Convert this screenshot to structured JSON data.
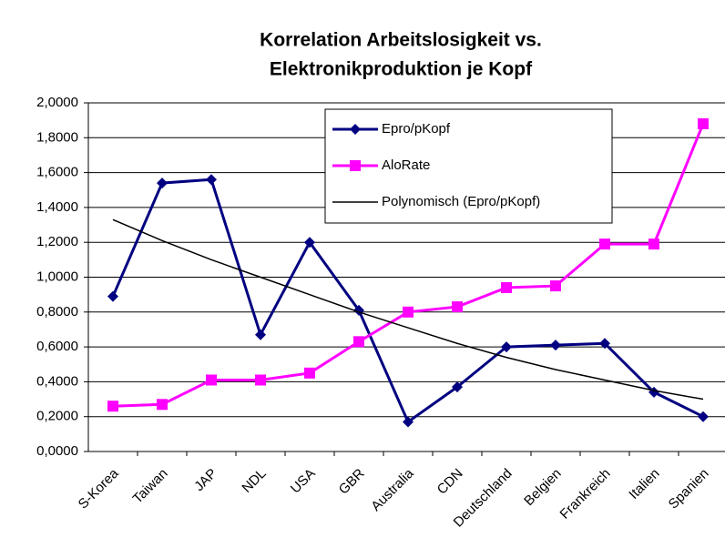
{
  "chart_data": {
    "type": "line",
    "title": [
      "Korrelation Arbeitslosigkeit  vs.",
      "Elektronikproduktion je Kopf"
    ],
    "categories": [
      "S-Korea",
      "Taiwan",
      "JAP",
      "NDL",
      "USA",
      "GBR",
      "Australia",
      "CDN",
      "Deutschland",
      "Belgien",
      "Frankreich",
      "Italien",
      "Spanien"
    ],
    "series": [
      {
        "name": "Epro/pKopf",
        "color": "#000080",
        "marker": "diamond",
        "values": [
          0.89,
          1.54,
          1.56,
          0.67,
          1.2,
          0.81,
          0.17,
          0.37,
          0.6,
          0.61,
          0.62,
          0.34,
          0.2
        ]
      },
      {
        "name": "AloRate",
        "color": "#ff00ff",
        "marker": "square",
        "values": [
          0.26,
          0.27,
          0.41,
          0.41,
          0.45,
          0.63,
          0.8,
          0.83,
          0.94,
          0.95,
          1.19,
          1.19,
          1.88
        ]
      },
      {
        "name": "Polynomisch (Epro/pKopf)",
        "color": "#000000",
        "marker": "none",
        "values": [
          1.33,
          1.21,
          1.1,
          1.0,
          0.9,
          0.8,
          0.71,
          0.62,
          0.54,
          0.47,
          0.41,
          0.35,
          0.3
        ]
      }
    ],
    "ylim": [
      0,
      2
    ],
    "yticks": [
      {
        "value": 0,
        "label": "0,0000"
      },
      {
        "value": 0.2,
        "label": "0,2000"
      },
      {
        "value": 0.4,
        "label": "0,4000"
      },
      {
        "value": 0.6,
        "label": "0,6000"
      },
      {
        "value": 0.8,
        "label": "0,8000"
      },
      {
        "value": 1.0,
        "label": "1,0000"
      },
      {
        "value": 1.2,
        "label": "1,2000"
      },
      {
        "value": 1.4,
        "label": "1,4000"
      },
      {
        "value": 1.6,
        "label": "1,6000"
      },
      {
        "value": 1.8,
        "label": "1,8000"
      },
      {
        "value": 2.0,
        "label": "2,0000"
      }
    ],
    "grid": true,
    "legend": "top-right"
  }
}
